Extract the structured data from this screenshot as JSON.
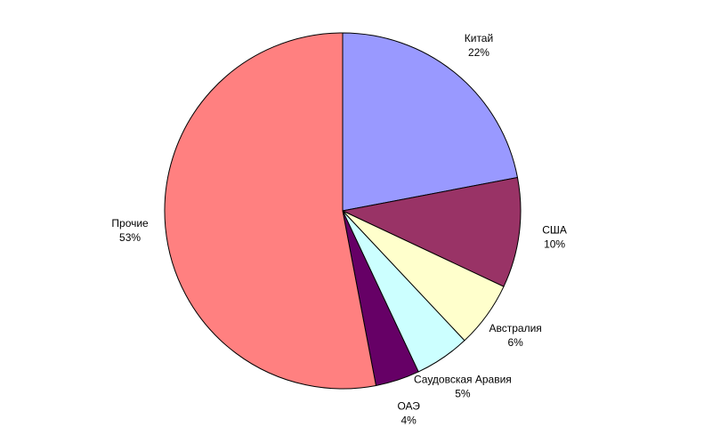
{
  "chart_data": {
    "type": "pie",
    "categories": [
      "Китай",
      "США",
      "Австралия",
      "Саудовская Аравия",
      "ОАЭ",
      "Прочие"
    ],
    "values": [
      22,
      10,
      6,
      5,
      4,
      53
    ],
    "value_labels": [
      "22%",
      "10%",
      "6%",
      "5%",
      "4%",
      "53%"
    ],
    "colors": [
      "#9999ff",
      "#993366",
      "#ffffcc",
      "#ccffff",
      "#660066",
      "#ff8080"
    ]
  }
}
